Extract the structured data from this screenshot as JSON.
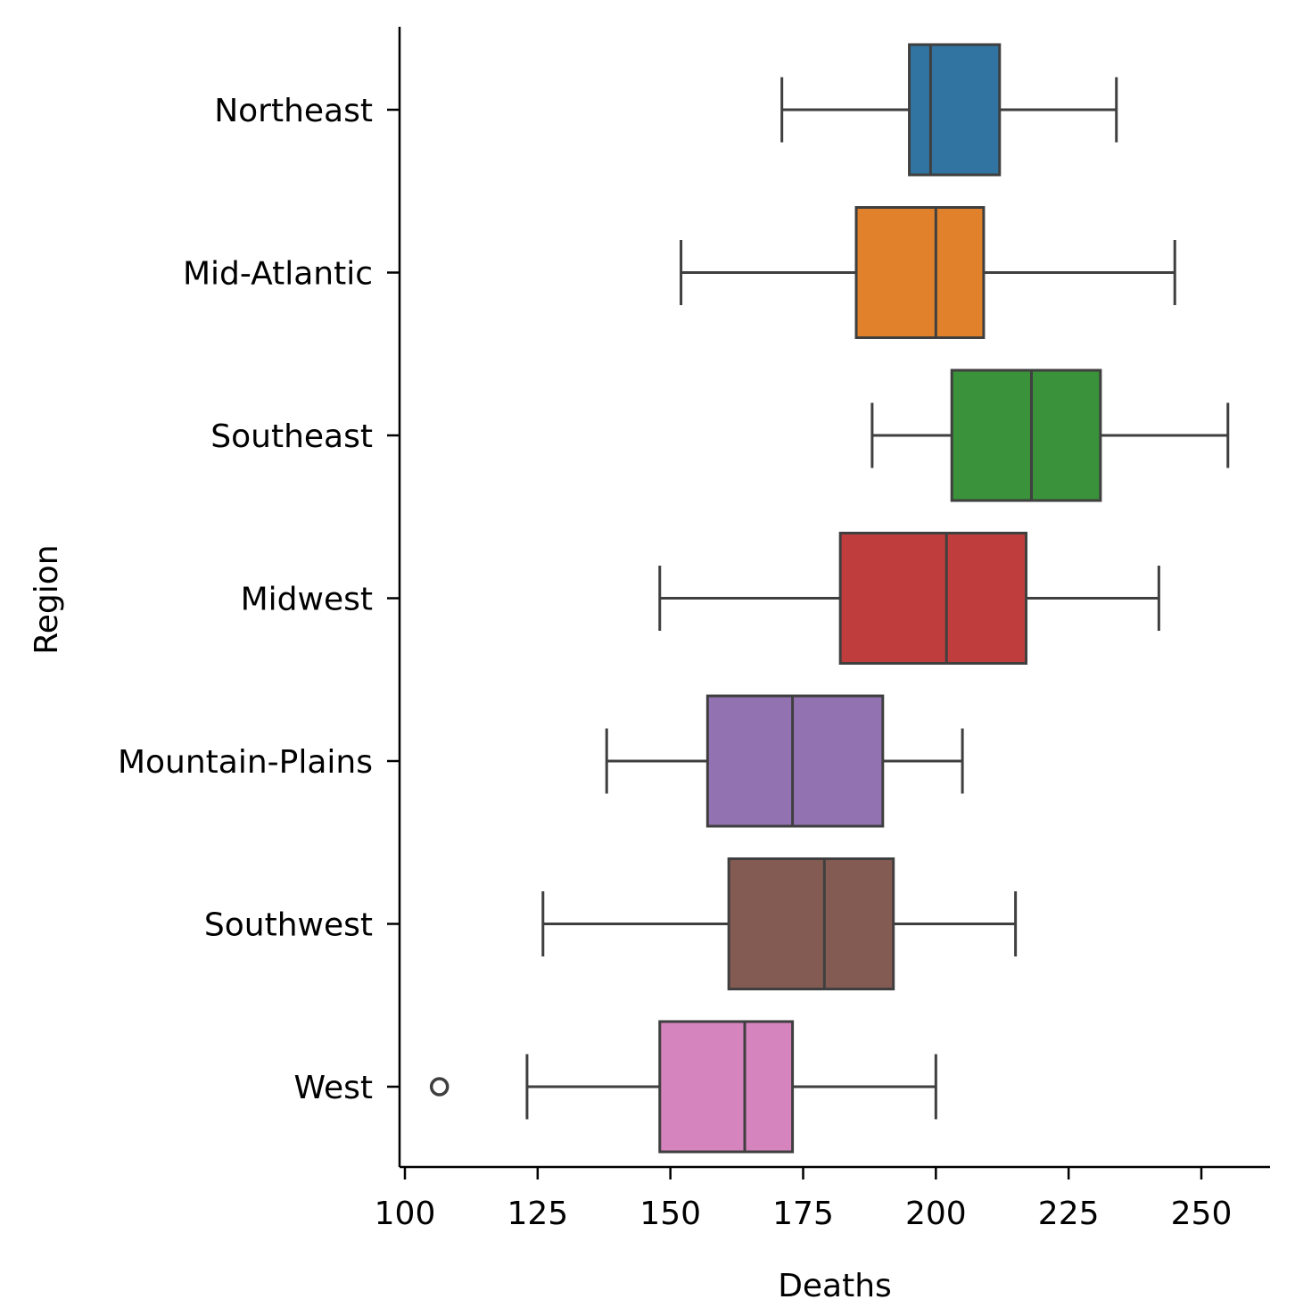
{
  "chart_data": {
    "type": "boxplot",
    "orientation": "horizontal",
    "title": "",
    "xlabel": "Deaths",
    "ylabel": "Region",
    "xlim": [
      99,
      263
    ],
    "xticks": [
      100,
      125,
      150,
      175,
      200,
      225,
      250
    ],
    "grid": false,
    "legend": "none",
    "categories": [
      "Northeast",
      "Mid-Atlantic",
      "Southeast",
      "Midwest",
      "Mountain-Plains",
      "Southwest",
      "West"
    ],
    "series": [
      {
        "category": "Northeast",
        "color": "#3274a1",
        "whisker_low": 171,
        "q1": 195,
        "median": 199,
        "q3": 212,
        "whisker_high": 234,
        "outliers": []
      },
      {
        "category": "Mid-Atlantic",
        "color": "#e1812c",
        "whisker_low": 152,
        "q1": 185,
        "median": 200,
        "q3": 209,
        "whisker_high": 245,
        "outliers": []
      },
      {
        "category": "Southeast",
        "color": "#3a923a",
        "whisker_low": 188,
        "q1": 203,
        "median": 218,
        "q3": 231,
        "whisker_high": 255,
        "outliers": []
      },
      {
        "category": "Midwest",
        "color": "#c03d3e",
        "whisker_low": 148,
        "q1": 182,
        "median": 202,
        "q3": 217,
        "whisker_high": 242,
        "outliers": []
      },
      {
        "category": "Mountain-Plains",
        "color": "#9372b2",
        "whisker_low": 138,
        "q1": 157,
        "median": 173,
        "q3": 190,
        "whisker_high": 205,
        "outliers": []
      },
      {
        "category": "Southwest",
        "color": "#845b53",
        "whisker_low": 126,
        "q1": 161,
        "median": 179,
        "q3": 192,
        "whisker_high": 215,
        "outliers": []
      },
      {
        "category": "West",
        "color": "#d684bd",
        "whisker_low": 123,
        "q1": 148,
        "median": 164,
        "q3": 173,
        "whisker_high": 200,
        "outliers": [
          106.5
        ]
      }
    ]
  },
  "colors": {
    "edge": "#3f3f3f",
    "axis": "#000000"
  }
}
